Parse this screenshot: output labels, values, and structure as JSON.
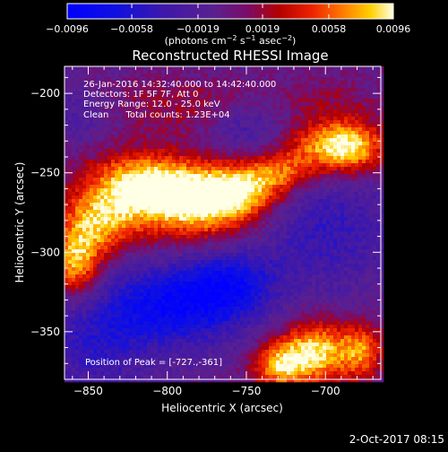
{
  "chart_data": {
    "type": "heatmap",
    "title": "Reconstructed RHESSI Image",
    "xlabel": "Heliocentric X (arcsec)",
    "ylabel": "Heliocentric Y (arcsec)",
    "xlim": [
      -865,
      -665
    ],
    "ylim": [
      -380,
      -183
    ],
    "x_ticks": [
      -850,
      -800,
      -750,
      -700
    ],
    "x_tick_labels": [
      "−850",
      "−800",
      "−750",
      "−700"
    ],
    "y_ticks": [
      -200,
      -250,
      -300,
      -350
    ],
    "y_tick_labels": [
      "−200",
      "−250",
      "−300",
      "−350"
    ],
    "colorbar": {
      "min": -0.0096,
      "max": 0.0096,
      "ticks": [
        -0.0096,
        -0.0058,
        -0.0019,
        0.0019,
        0.0058,
        0.0096
      ],
      "tick_labels": [
        "−0.0096",
        "−0.0058",
        "−0.0019",
        "0.0019",
        "0.0058",
        "0.0096"
      ],
      "label_main": "(photons cm",
      "label_sup1": "−2",
      "label_mid1": " s",
      "label_sup2": "−1",
      "label_mid2": " asec",
      "label_sup3": "−2",
      "label_end": ")"
    },
    "annotations": [
      "26-Jan-2016 14:32:40.000 to 14:42:40.000",
      "Detectors: 1F 5F 7F, Att 0",
      "Energy Range: 12.0 - 25.0 keV",
      "Clean      Total counts: 1.23E+04"
    ],
    "peak_label": "Position of Peak = [-727.,-361]",
    "peak": {
      "x": -727,
      "y": -361
    },
    "sources": [
      {
        "x": -783,
        "y": -268,
        "amp": 0.0096,
        "sx": 26,
        "sy": 17
      },
      {
        "x": -820,
        "y": -258,
        "amp": 0.0088,
        "sx": 24,
        "sy": 15
      },
      {
        "x": -754,
        "y": -262,
        "amp": 0.0072,
        "sx": 18,
        "sy": 12
      },
      {
        "x": -846,
        "y": -283,
        "amp": 0.0074,
        "sx": 17,
        "sy": 14
      },
      {
        "x": -858,
        "y": -308,
        "amp": 0.0082,
        "sx": 11,
        "sy": 14
      },
      {
        "x": -728,
        "y": -250,
        "amp": 0.0058,
        "sx": 16,
        "sy": 9
      },
      {
        "x": -698,
        "y": -233,
        "amp": 0.0074,
        "sx": 24,
        "sy": 11
      },
      {
        "x": -684,
        "y": -235,
        "amp": 0.0048,
        "sx": 14,
        "sy": 12
      },
      {
        "x": -706,
        "y": -363,
        "amp": 0.0098,
        "sx": 18,
        "sy": 14
      },
      {
        "x": -730,
        "y": -372,
        "amp": 0.0066,
        "sx": 12,
        "sy": 10
      },
      {
        "x": -676,
        "y": -362,
        "amp": 0.0058,
        "sx": 9,
        "sy": 12
      },
      {
        "x": -790,
        "y": -207,
        "amp": 0.0026,
        "sx": 45,
        "sy": 14
      },
      {
        "x": -700,
        "y": -205,
        "amp": 0.0022,
        "sx": 26,
        "sy": 12
      },
      {
        "x": -795,
        "y": -333,
        "amp": -0.0075,
        "sx": 34,
        "sy": 18
      },
      {
        "x": -760,
        "y": -318,
        "amp": -0.0048,
        "sx": 20,
        "sy": 14
      },
      {
        "x": -845,
        "y": -360,
        "amp": -0.0036,
        "sx": 24,
        "sy": 20
      },
      {
        "x": -700,
        "y": -285,
        "amp": -0.0038,
        "sx": 30,
        "sy": 26
      },
      {
        "x": -745,
        "y": -222,
        "amp": -0.0035,
        "sx": 20,
        "sy": 14
      },
      {
        "x": -855,
        "y": -212,
        "amp": -0.0022,
        "sx": 16,
        "sy": 14
      }
    ],
    "baseline": -0.0008,
    "noise": 0.0012
  },
  "footer": {
    "date_text": "2-Oct-2017 08:15"
  }
}
